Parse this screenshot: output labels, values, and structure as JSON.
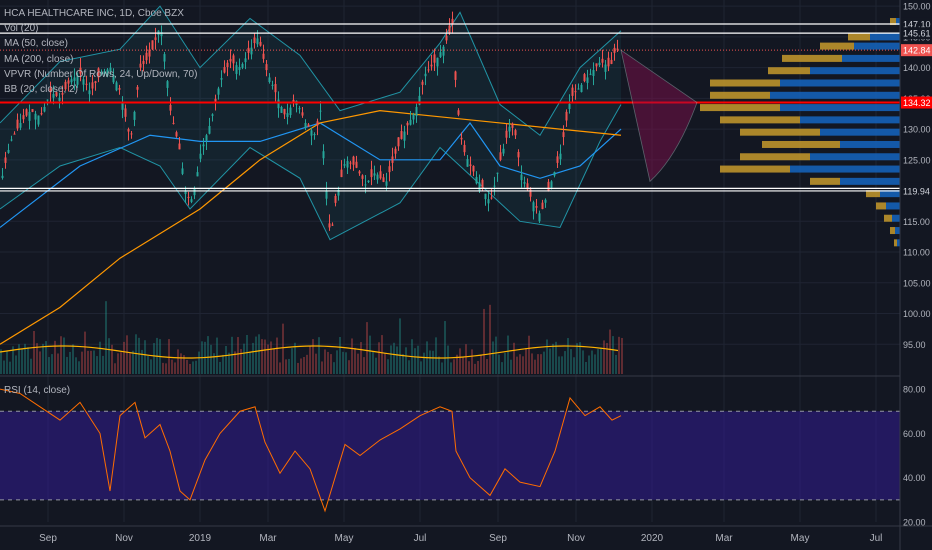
{
  "legend": {
    "title": "HCA HEALTHCARE INC, 1D, Cboe BZX",
    "vol": "Vol (20)",
    "ma50": "MA (50, close)",
    "ma200": "MA (200, close)",
    "vpvr": "VPVR (Number Of Rows, 24, Up/Down, 70)",
    "bb": "BB (20, close, 2)",
    "rsi": "RSI (14, close)"
  },
  "colors": {
    "background": "#131722",
    "up": "#26a69a",
    "down": "#ef5350",
    "ma50": "#2196f3",
    "ma200": "#ff9800",
    "bb": "#26c6da",
    "rsi": "#ff6d00",
    "rsi_zone": "#311b92",
    "vpvr_up": "#1565c0",
    "vpvr_down": "#c79a2b",
    "support": "#ffffff",
    "resistance": "#ff0000",
    "forecast": "#880e4f"
  },
  "chart_data": {
    "type": "candlestick",
    "price_axis": {
      "ticks": [
        "150.00",
        "145.00",
        "140.00",
        "135.00",
        "130.00",
        "125.00",
        "115.00",
        "110.00",
        "105.00",
        "100.00",
        "95.00"
      ],
      "range": [
        90,
        151
      ]
    },
    "x_axis": {
      "labels": [
        "Sep",
        "Nov",
        "2019",
        "Mar",
        "May",
        "Jul",
        "Sep",
        "Nov",
        "2020",
        "Mar",
        "May",
        "Jul"
      ]
    },
    "price_labels": [
      {
        "value": 147.1,
        "text": "147.10",
        "kind": "line"
      },
      {
        "value": 145.61,
        "text": "145.61",
        "kind": "line"
      },
      {
        "value": 142.84,
        "text": "142.84",
        "kind": "last"
      },
      {
        "value": 134.32,
        "text": "134.32",
        "kind": "resistance"
      },
      {
        "value": 120.36,
        "text": "120.36",
        "kind": "line"
      },
      {
        "value": 119.94,
        "text": "119.94",
        "kind": "line"
      }
    ],
    "horizontal_lines": [
      {
        "value": 147.1,
        "color": "#ffffff"
      },
      {
        "value": 145.61,
        "color": "#ffffff"
      },
      {
        "value": 134.32,
        "color": "#ff0000"
      },
      {
        "value": 120.36,
        "color": "#ffffff"
      },
      {
        "value": 119.94,
        "color": "#ffffff"
      }
    ],
    "last_price": 142.84,
    "price_path": [
      [
        0,
        121
      ],
      [
        10,
        128
      ],
      [
        20,
        131
      ],
      [
        30,
        133
      ],
      [
        40,
        132
      ],
      [
        50,
        136
      ],
      [
        60,
        135
      ],
      [
        70,
        138
      ],
      [
        80,
        139
      ],
      [
        90,
        136
      ],
      [
        100,
        139
      ],
      [
        110,
        140
      ],
      [
        120,
        136
      ],
      [
        130,
        128
      ],
      [
        140,
        140
      ],
      [
        150,
        142
      ],
      [
        160,
        147
      ],
      [
        165,
        141
      ],
      [
        170,
        133
      ],
      [
        180,
        126
      ],
      [
        185,
        120
      ],
      [
        190,
        118
      ],
      [
        195,
        121
      ],
      [
        200,
        126
      ],
      [
        210,
        131
      ],
      [
        220,
        138
      ],
      [
        230,
        141
      ],
      [
        240,
        140
      ],
      [
        250,
        143
      ],
      [
        258,
        145
      ],
      [
        265,
        140
      ],
      [
        275,
        136
      ],
      [
        285,
        132
      ],
      [
        295,
        135
      ],
      [
        305,
        131
      ],
      [
        315,
        129
      ],
      [
        320,
        133
      ],
      [
        325,
        122
      ],
      [
        330,
        112
      ],
      [
        335,
        118
      ],
      [
        345,
        125
      ],
      [
        355,
        124
      ],
      [
        365,
        121
      ],
      [
        375,
        123
      ],
      [
        385,
        121
      ],
      [
        395,
        126
      ],
      [
        405,
        130
      ],
      [
        415,
        133
      ],
      [
        425,
        139
      ],
      [
        435,
        141
      ],
      [
        445,
        144
      ],
      [
        452,
        147
      ],
      [
        456,
        135
      ],
      [
        462,
        127
      ],
      [
        470,
        124
      ],
      [
        480,
        121
      ],
      [
        490,
        118
      ],
      [
        500,
        125
      ],
      [
        510,
        131
      ],
      [
        515,
        129
      ],
      [
        520,
        123
      ],
      [
        530,
        119
      ],
      [
        540,
        116
      ],
      [
        550,
        121
      ],
      [
        560,
        126
      ],
      [
        570,
        135
      ],
      [
        580,
        137
      ],
      [
        590,
        139
      ],
      [
        600,
        141
      ],
      [
        610,
        140
      ],
      [
        615,
        143
      ],
      [
        621,
        142.84
      ]
    ],
    "ma50": [
      [
        0,
        114
      ],
      [
        80,
        124
      ],
      [
        150,
        129
      ],
      [
        200,
        128
      ],
      [
        260,
        128
      ],
      [
        320,
        131
      ],
      [
        380,
        125
      ],
      [
        440,
        125
      ],
      [
        470,
        131
      ],
      [
        500,
        124
      ],
      [
        540,
        122
      ],
      [
        580,
        124
      ],
      [
        621,
        130
      ]
    ],
    "ma200": [
      [
        0,
        95
      ],
      [
        60,
        101
      ],
      [
        120,
        109
      ],
      [
        200,
        117
      ],
      [
        260,
        125
      ],
      [
        320,
        131
      ],
      [
        380,
        133
      ],
      [
        440,
        132
      ],
      [
        500,
        131
      ],
      [
        560,
        130
      ],
      [
        621,
        129
      ]
    ],
    "bb_upper": [
      [
        0,
        131
      ],
      [
        60,
        141
      ],
      [
        120,
        143
      ],
      [
        160,
        150
      ],
      [
        200,
        140
      ],
      [
        250,
        148
      ],
      [
        300,
        142
      ],
      [
        340,
        133
      ],
      [
        400,
        136
      ],
      [
        440,
        144
      ],
      [
        460,
        149
      ],
      [
        500,
        134
      ],
      [
        540,
        129
      ],
      [
        580,
        140
      ],
      [
        621,
        146
      ]
    ],
    "bb_lower": [
      [
        0,
        117
      ],
      [
        60,
        124
      ],
      [
        120,
        127
      ],
      [
        160,
        124
      ],
      [
        190,
        117
      ],
      [
        250,
        127
      ],
      [
        300,
        122
      ],
      [
        330,
        112
      ],
      [
        400,
        118
      ],
      [
        440,
        127
      ],
      [
        480,
        121
      ],
      [
        520,
        115
      ],
      [
        560,
        114
      ],
      [
        600,
        128
      ],
      [
        621,
        134
      ]
    ],
    "forecast_zone": {
      "x0": 621,
      "p0": 142.84,
      "tip_x": 697,
      "tip_p": 134.32,
      "top_p": 134.5,
      "bottom_p": 121.5
    },
    "vpvr_bars": [
      {
        "price": 147.5,
        "up": 4,
        "down": 6
      },
      {
        "price": 145.0,
        "up": 30,
        "down": 22
      },
      {
        "price": 143.5,
        "up": 46,
        "down": 34
      },
      {
        "price": 141.5,
        "up": 58,
        "down": 60
      },
      {
        "price": 139.5,
        "up": 90,
        "down": 42
      },
      {
        "price": 137.5,
        "up": 120,
        "down": 70
      },
      {
        "price": 135.5,
        "up": 130,
        "down": 60
      },
      {
        "price": 133.5,
        "up": 120,
        "down": 80
      },
      {
        "price": 131.5,
        "up": 100,
        "down": 80
      },
      {
        "price": 129.5,
        "up": 80,
        "down": 80
      },
      {
        "price": 127.5,
        "up": 60,
        "down": 78
      },
      {
        "price": 125.5,
        "up": 90,
        "down": 70
      },
      {
        "price": 123.5,
        "up": 110,
        "down": 70
      },
      {
        "price": 121.5,
        "up": 60,
        "down": 30
      },
      {
        "price": 119.5,
        "up": 20,
        "down": 14
      },
      {
        "price": 117.5,
        "up": 14,
        "down": 10
      },
      {
        "price": 115.5,
        "up": 8,
        "down": 8
      },
      {
        "price": 113.5,
        "up": 5,
        "down": 5
      },
      {
        "price": 111.5,
        "up": 3,
        "down": 3
      }
    ],
    "rsi": {
      "ticks": [
        "80.00",
        "60.00",
        "40.00",
        "20.00"
      ],
      "range": [
        20,
        85
      ],
      "upper": 70,
      "lower": 30,
      "series": [
        [
          0,
          80
        ],
        [
          20,
          78
        ],
        [
          40,
          72
        ],
        [
          60,
          66
        ],
        [
          80,
          74
        ],
        [
          100,
          60
        ],
        [
          110,
          34
        ],
        [
          120,
          68
        ],
        [
          135,
          74
        ],
        [
          145,
          58
        ],
        [
          160,
          64
        ],
        [
          170,
          52
        ],
        [
          180,
          34
        ],
        [
          190,
          30
        ],
        [
          205,
          48
        ],
        [
          220,
          60
        ],
        [
          240,
          70
        ],
        [
          255,
          72
        ],
        [
          265,
          56
        ],
        [
          280,
          42
        ],
        [
          295,
          52
        ],
        [
          310,
          44
        ],
        [
          325,
          25
        ],
        [
          335,
          40
        ],
        [
          345,
          55
        ],
        [
          360,
          50
        ],
        [
          380,
          57
        ],
        [
          400,
          62
        ],
        [
          420,
          68
        ],
        [
          440,
          72
        ],
        [
          452,
          70
        ],
        [
          456,
          52
        ],
        [
          470,
          40
        ],
        [
          490,
          32
        ],
        [
          505,
          44
        ],
        [
          520,
          38
        ],
        [
          540,
          36
        ],
        [
          555,
          52
        ],
        [
          570,
          76
        ],
        [
          585,
          68
        ],
        [
          600,
          72
        ],
        [
          612,
          66
        ],
        [
          621,
          68
        ]
      ]
    }
  }
}
